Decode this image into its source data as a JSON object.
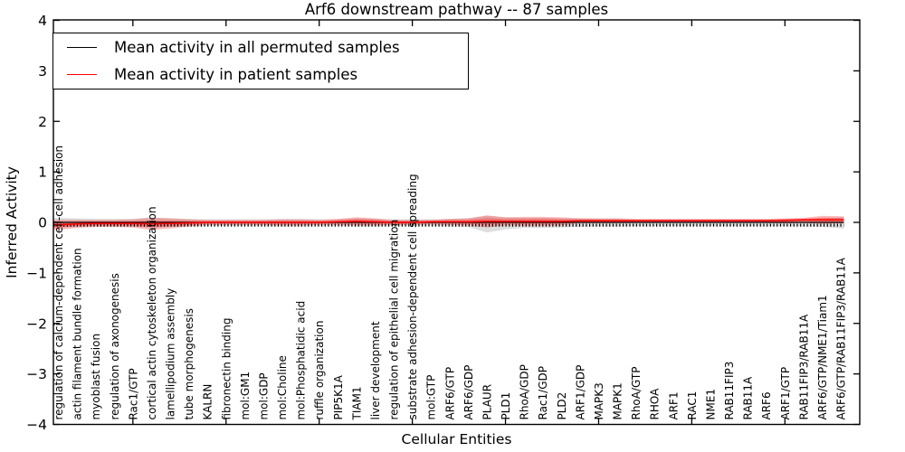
{
  "chart_data": {
    "type": "line",
    "title": "Arf6 downstream pathway -- 87 samples",
    "xlabel": "Cellular Entities",
    "ylabel": "Inferred Activity",
    "ylim": [
      -4,
      4
    ],
    "y_ticks": [
      4,
      3,
      2,
      1,
      0,
      -1,
      -2,
      -3,
      -4
    ],
    "x_major_tick_every": 5,
    "grid": false,
    "legend_position": "upper left",
    "categories": [
      "regulation of calcium-dependent cell-cell adhesion",
      "actin filament bundle formation",
      "myoblast fusion",
      "regulation of axonogenesis",
      "Rac1/GTP",
      "cortical actin cytoskeleton organization",
      "lamellipodium assembly",
      "tube morphogenesis",
      "KALRN",
      "fibronectin binding",
      "mol:GM1",
      "mol:GDP",
      "mol:Choline",
      "mol:Phosphatidic acid",
      "ruffle organization",
      "PIP5K1A",
      "TIAM1",
      "liver development",
      "regulation of epithelial cell migration",
      "substrate adhesion-dependent cell spreading",
      "mol:GTP",
      "ARF6/GTP",
      "ARF6/GDP",
      "PLAUR",
      "PLD1",
      "RhoA/GDP",
      "Rac1/GDP",
      "PLD2",
      "ARF1/GDP",
      "MAPK3",
      "MAPK1",
      "RhoA/GTP",
      "RHOA",
      "ARF1",
      "RAC1",
      "NME1",
      "RAB11FIP3",
      "RAB11A",
      "ARF6",
      "ARF1/GTP",
      "RAB11FIP3/RAB11A",
      "ARF6/GTP/NME1/Tiam1",
      "ARF6/GTP/RAB11FIP3/RAB11A"
    ],
    "series": [
      {
        "name": "Mean activity in all permuted samples",
        "color": "#000000",
        "values": [
          0,
          0,
          0,
          0,
          0,
          0,
          0,
          0,
          0,
          0,
          0,
          0,
          0,
          0,
          0,
          0,
          0,
          0,
          0,
          0,
          0,
          0,
          0,
          0,
          0,
          0,
          0,
          0,
          0,
          0,
          0,
          0,
          0,
          0,
          0,
          0,
          0,
          0,
          0,
          0,
          0,
          0,
          0
        ]
      },
      {
        "name": "Mean activity in patient samples",
        "color": "#ff0000",
        "values": [
          -0.05,
          -0.03,
          -0.02,
          -0.02,
          -0.02,
          -0.03,
          -0.02,
          -0.01,
          0,
          0,
          0,
          0,
          0,
          0,
          0,
          0.01,
          0.02,
          0.01,
          0,
          0,
          0.01,
          0.01,
          0.01,
          0.02,
          0.02,
          0.02,
          0.02,
          0.02,
          0.03,
          0.03,
          0.03,
          0.03,
          0.03,
          0.03,
          0.03,
          0.03,
          0.03,
          0.03,
          0.03,
          0.04,
          0.05,
          0.05,
          0.05
        ]
      }
    ],
    "bands": [
      {
        "name": "permuted-sample-range",
        "color": "rgba(0,0,0,0.13)",
        "upper": [
          0.09,
          0.08,
          0.07,
          0.07,
          0.07,
          0.1,
          0.08,
          0.07,
          0.06,
          0.06,
          0.06,
          0.06,
          0.07,
          0.07,
          0.06,
          0.06,
          0.08,
          0.07,
          0.06,
          0.06,
          0.06,
          0.07,
          0.08,
          0.13,
          0.1,
          0.09,
          0.09,
          0.08,
          0.08,
          0.07,
          0.07,
          0.06,
          0.06,
          0.06,
          0.06,
          0.06,
          0.06,
          0.06,
          0.06,
          0.06,
          0.07,
          0.08,
          0.1
        ],
        "lower": [
          -0.1,
          -0.09,
          -0.08,
          -0.08,
          -0.08,
          -0.11,
          -0.09,
          -0.08,
          -0.07,
          -0.07,
          -0.07,
          -0.07,
          -0.08,
          -0.08,
          -0.07,
          -0.07,
          -0.08,
          -0.08,
          -0.07,
          -0.07,
          -0.07,
          -0.08,
          -0.09,
          -0.2,
          -0.14,
          -0.11,
          -0.11,
          -0.1,
          -0.09,
          -0.08,
          -0.08,
          -0.07,
          -0.07,
          -0.07,
          -0.07,
          -0.07,
          -0.07,
          -0.07,
          -0.07,
          -0.07,
          -0.08,
          -0.09,
          -0.12
        ]
      },
      {
        "name": "patient-sample-range",
        "color": "rgba(255,0,0,0.27)",
        "inner_scale": 0.55,
        "upper": [
          0.05,
          0.05,
          0.05,
          0.05,
          0.06,
          0.09,
          0.08,
          0.06,
          0.05,
          0.05,
          0.05,
          0.05,
          0.06,
          0.06,
          0.05,
          0.07,
          0.1,
          0.08,
          0.05,
          0.05,
          0.05,
          0.07,
          0.08,
          0.14,
          0.1,
          0.11,
          0.11,
          0.1,
          0.08,
          0.08,
          0.08,
          0.07,
          0.07,
          0.07,
          0.07,
          0.07,
          0.07,
          0.07,
          0.07,
          0.08,
          0.09,
          0.13,
          0.12
        ],
        "lower": [
          -0.15,
          -0.11,
          -0.09,
          -0.09,
          -0.1,
          -0.15,
          -0.12,
          -0.08,
          -0.05,
          -0.05,
          -0.05,
          -0.05,
          -0.06,
          -0.06,
          -0.05,
          -0.05,
          -0.06,
          -0.06,
          -0.05,
          -0.05,
          -0.04,
          -0.05,
          -0.06,
          -0.1,
          -0.06,
          -0.07,
          -0.07,
          -0.06,
          -0.02,
          -0.02,
          -0.02,
          -0.01,
          -0.01,
          -0.01,
          -0.01,
          -0.01,
          -0.01,
          -0.01,
          -0.01,
          -0.02,
          -0.01,
          -0.03,
          -0.02
        ]
      }
    ],
    "reference_dotted_line": {
      "y": -0.055,
      "color": "#000000"
    }
  }
}
